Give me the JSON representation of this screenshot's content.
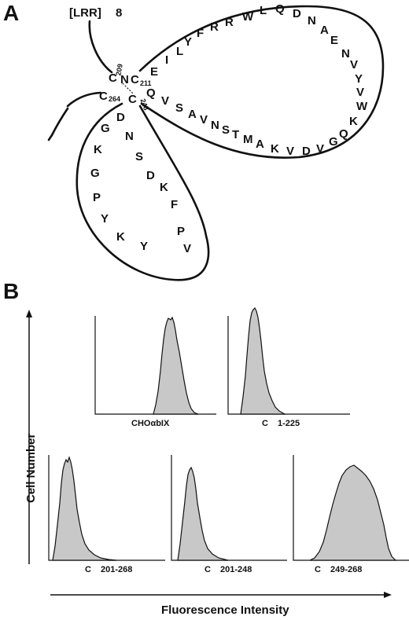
{
  "panel_a": {
    "letter": "A",
    "lrr_label": "[LRR]",
    "lrr_number": "8",
    "cysteines": [
      {
        "c": "C",
        "num": "209"
      },
      {
        "c": "C",
        "num": "211"
      },
      {
        "c": "C",
        "num": "264"
      },
      {
        "c": "C",
        "num": "248"
      }
    ],
    "n_letter": "N",
    "big_loop_upper": [
      "E",
      "I",
      "L",
      "Y",
      "F",
      "R",
      "R",
      "W",
      "L",
      "Q",
      "D",
      "N",
      "A",
      "E",
      "N",
      "V",
      "Y",
      "V",
      "W",
      "K"
    ],
    "big_loop_lower": [
      "Q",
      "G",
      "V",
      "D",
      "V",
      "K",
      "A",
      "M",
      "T",
      "S",
      "N",
      "V",
      "A",
      "S",
      "V",
      "Q"
    ],
    "small_loop_left": [
      "D",
      "G",
      "K",
      "G",
      "P",
      "Y",
      "K"
    ],
    "small_loop_right": [
      "N",
      "S",
      "D",
      "K",
      "F",
      "P",
      "V"
    ],
    "small_loop_bottom": [
      "Y"
    ]
  },
  "panel_b": {
    "letter": "B",
    "y_axis_label": "Cell Number",
    "x_axis_label": "Fluorescence Intensity",
    "histograms": [
      {
        "label_a": "CHOαbIX",
        "label_b": ""
      },
      {
        "label_a": "C",
        "label_b": "1-225"
      },
      {
        "label_a": "C",
        "label_b": "201-268"
      },
      {
        "label_a": "C",
        "label_b": "201-248"
      },
      {
        "label_a": "C",
        "label_b": "249-268"
      }
    ]
  }
}
